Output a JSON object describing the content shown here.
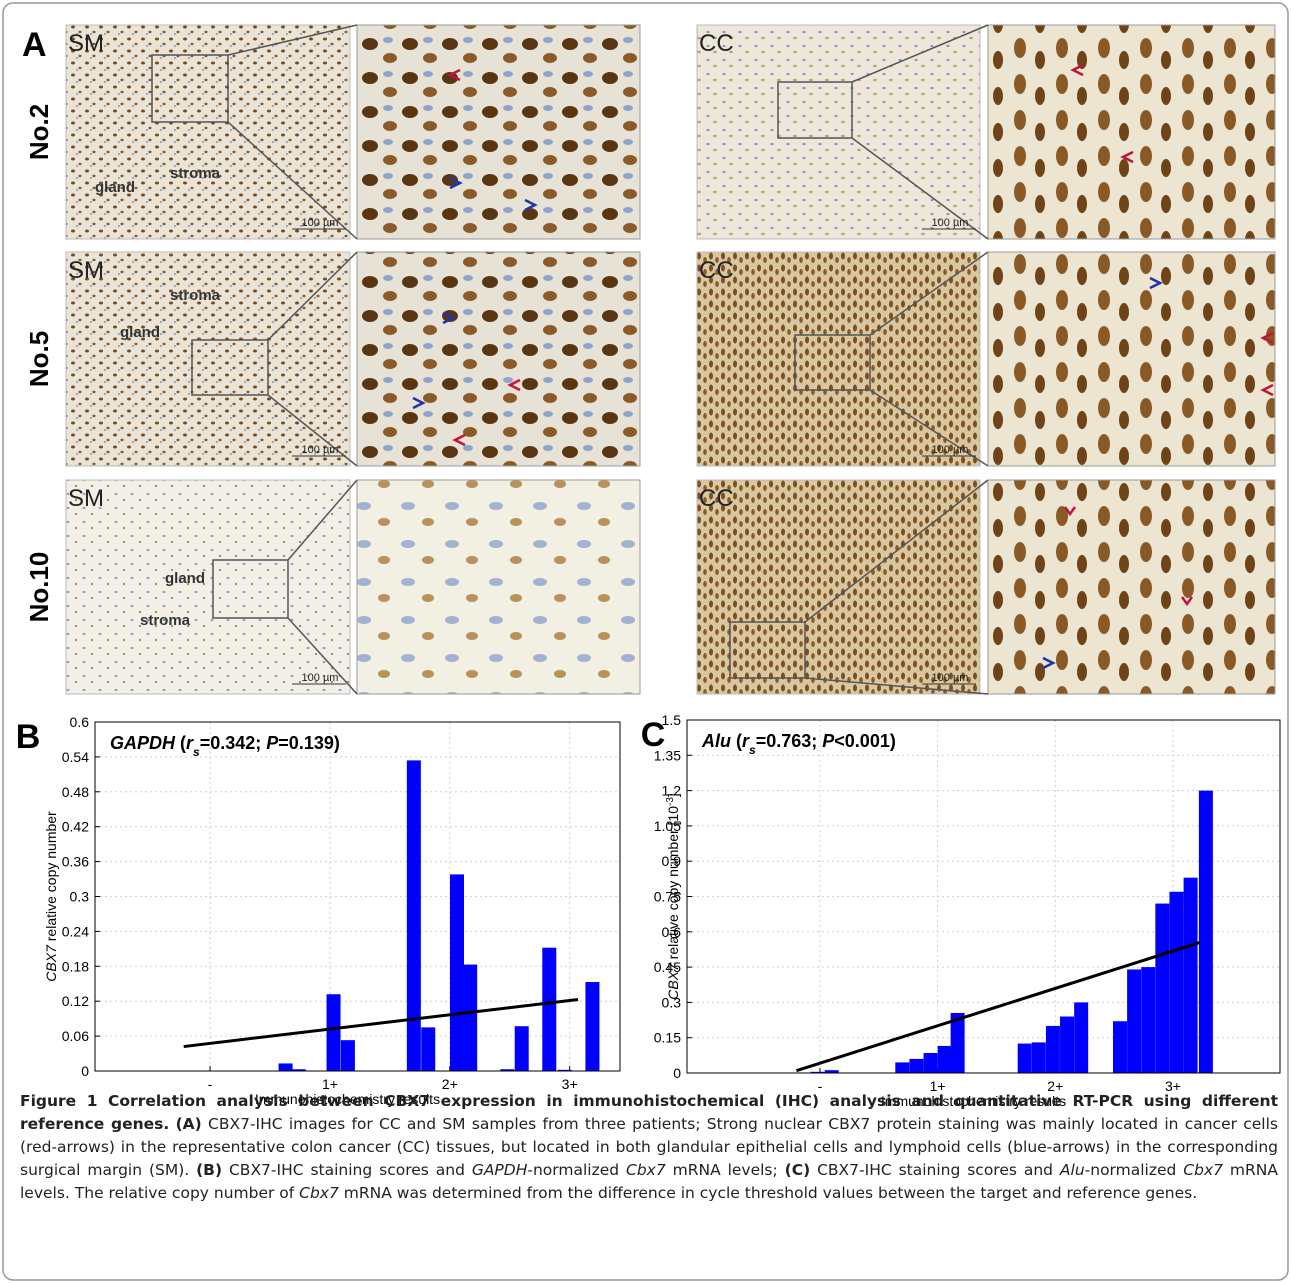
{
  "panel_a": {
    "label": "A",
    "rows": [
      {
        "label": "No.2",
        "images": [
          {
            "tissue": "SM",
            "annotations": [
              "gland",
              "stroma"
            ],
            "scale": "100 µm"
          },
          {
            "tissue": "CC",
            "scale": "100 µm"
          }
        ]
      },
      {
        "label": "No.5",
        "images": [
          {
            "tissue": "SM",
            "annotations": [
              "stroma",
              "gland"
            ],
            "scale": "100 µm"
          },
          {
            "tissue": "CC",
            "scale": "100 µm"
          }
        ]
      },
      {
        "label": "No.10",
        "images": [
          {
            "tissue": "SM",
            "annotations": [
              "gland",
              "stroma"
            ],
            "scale": "100 µm"
          },
          {
            "tissue": "CC",
            "scale": "100 µm"
          }
        ]
      }
    ]
  },
  "chart_data": [
    {
      "type": "bar",
      "panel_label": "B",
      "title": [
        "GAPDH",
        " (",
        "r",
        "s",
        "=0.342; ",
        "P",
        "=0.139)"
      ],
      "ylabel": [
        "CBX7",
        " relative copy number"
      ],
      "xlabel": "Immunohistochemistry results",
      "x": [
        1.63,
        1.74,
        2.03,
        2.15,
        2.7,
        2.82,
        3.06,
        3.17,
        3.48,
        3.6,
        3.83,
        3.96,
        4.19
      ],
      "values": [
        0.013,
        0.003,
        0.132,
        0.053,
        0.534,
        0.075,
        0.338,
        0.183,
        0.003,
        0.077,
        0.212,
        0.002,
        0.153
      ],
      "color": "#0000ff",
      "trend": {
        "x": [
          0.78,
          4.07
        ],
        "y": [
          0.042,
          0.123
        ],
        "color": "#000000"
      },
      "xlim": [
        0.04,
        4.42
      ],
      "xticks": [
        {
          "value": 1,
          "label": "-"
        },
        {
          "value": 2,
          "label": "1+"
        },
        {
          "value": 3,
          "label": "2+"
        },
        {
          "value": 4,
          "label": "3+"
        }
      ],
      "ylim": [
        0,
        0.6
      ],
      "yticks": [
        0,
        0.06,
        0.12,
        0.18,
        0.24,
        0.3,
        0.36,
        0.42,
        0.48,
        0.54,
        0.6
      ],
      "grid": true
    },
    {
      "type": "bar",
      "panel_label": "C",
      "title": [
        "Alu",
        " (",
        "r",
        "s",
        "=0.763; ",
        "P",
        "<0.001)"
      ],
      "ylabel": [
        "CBX7",
        " relative copy number [10",
        "-3",
        "]"
      ],
      "xlabel": "Immunohistochemistry results",
      "x": [
        0.98,
        1.1,
        1.7,
        1.82,
        1.94,
        2.06,
        2.17,
        2.74,
        2.86,
        2.98,
        3.1,
        3.22,
        3.55,
        3.67,
        3.79,
        3.91,
        4.03,
        4.15,
        4.28
      ],
      "values": [
        0.005,
        0.012,
        0.045,
        0.06,
        0.085,
        0.115,
        0.255,
        0.125,
        0.13,
        0.2,
        0.24,
        0.3,
        0.22,
        0.44,
        0.45,
        0.72,
        0.77,
        0.83,
        1.2
      ],
      "color": "#0000ff",
      "trend": {
        "x": [
          0.8,
          4.23
        ],
        "y": [
          0.01,
          0.555
        ],
        "color": "#000000"
      },
      "xlim": [
        -0.13,
        4.91
      ],
      "xticks": [
        {
          "value": 1,
          "label": "-"
        },
        {
          "value": 2,
          "label": "1+"
        },
        {
          "value": 3,
          "label": "2+"
        },
        {
          "value": 4,
          "label": "3+"
        }
      ],
      "ylim": [
        0,
        1.5
      ],
      "yticks": [
        0,
        0.15,
        0.3,
        0.45,
        0.6,
        0.75,
        0.9,
        1.05,
        1.2,
        1.35,
        1.5
      ],
      "grid": true
    }
  ],
  "caption": {
    "segments": [
      "Figure 1 Correlation analysis between CBX7 expression in immunohistochemical (IHC) analysis and quantitative RT-PCR using different reference genes.",
      " ",
      "(A)",
      " CBX7-IHC images for CC and SM samples from three patients; Strong nuclear CBX7 protein staining was mainly located in cancer cells (red-arrows) in the representative colon cancer (CC) tissues, but located in both glandular epithelial cells and lymphoid cells (blue-arrows) in the corresponding surgical margin (SM). ",
      "(B)",
      " CBX7-IHC staining scores and ",
      "GAPDH",
      "-normalized ",
      "Cbx7",
      " mRNA levels; ",
      "(C)",
      " CBX7-IHC staining scores and ",
      "Alu",
      "-normalized ",
      "Cbx7",
      " mRNA levels. The relative copy number of ",
      "Cbx7",
      " mRNA was determined from the difference in cycle threshold values between the target and reference genes."
    ]
  }
}
